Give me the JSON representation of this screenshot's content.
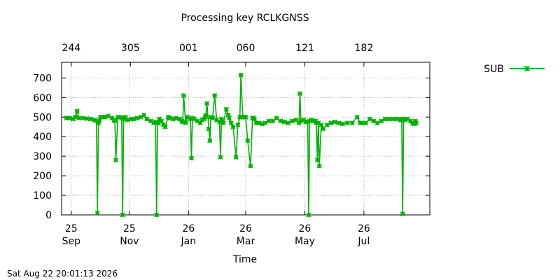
{
  "chart_data": {
    "type": "line",
    "title": "Processing key RCLKGNSS",
    "xlabel": "Time",
    "ylabel": "",
    "ylim": [
      0,
      780
    ],
    "xlim": [
      0,
      380
    ],
    "y_ticks": [
      0,
      100,
      200,
      300,
      400,
      500,
      600,
      700
    ],
    "x_ticks": [
      {
        "x": 10,
        "label": "25",
        "sub": "Sep"
      },
      {
        "x": 70,
        "label": "25",
        "sub": "Nov"
      },
      {
        "x": 131,
        "label": "26",
        "sub": "Jan"
      },
      {
        "x": 190,
        "label": "26",
        "sub": "Mar"
      },
      {
        "x": 251,
        "label": "26",
        "sub": "May"
      },
      {
        "x": 312,
        "label": "26",
        "sub": "Jul"
      }
    ],
    "x2_ticks": [
      {
        "x": 10,
        "label": "244"
      },
      {
        "x": 71,
        "label": "305"
      },
      {
        "x": 131,
        "label": "001"
      },
      {
        "x": 190,
        "label": "060"
      },
      {
        "x": 251,
        "label": "121"
      },
      {
        "x": 312,
        "label": "182"
      }
    ],
    "grid": true,
    "legend_position": "top-right",
    "series": [
      {
        "name": "SUB",
        "color": "#00b000",
        "x": [
          5,
          8,
          12,
          14,
          16,
          18,
          22,
          26,
          30,
          34,
          36,
          37,
          38,
          39,
          40,
          42,
          45,
          48,
          52,
          54,
          55,
          56,
          58,
          60,
          62,
          63,
          64,
          65,
          66,
          68,
          72,
          75,
          78,
          82,
          85,
          88,
          92,
          95,
          97,
          98,
          99,
          100,
          101,
          103,
          105,
          107,
          110,
          112,
          115,
          118,
          122,
          124,
          125,
          126,
          128,
          130,
          133,
          134,
          135,
          137,
          140,
          143,
          145,
          147,
          148,
          149,
          150,
          152,
          153,
          154,
          156,
          158,
          160,
          163,
          164,
          165,
          167,
          170,
          172,
          173,
          175,
          177,
          180,
          182,
          184,
          185,
          187,
          188,
          190,
          192,
          195,
          197,
          198,
          199,
          201,
          204,
          207,
          210,
          214,
          218,
          222,
          226,
          230,
          234,
          238,
          242,
          245,
          246,
          247,
          250,
          252,
          254,
          255,
          256,
          258,
          260,
          262,
          263,
          264,
          265,
          266,
          268,
          270,
          274,
          278,
          282,
          286,
          290,
          295,
          300,
          305,
          308,
          310,
          314,
          318,
          322,
          326,
          330,
          334,
          338,
          342,
          346,
          350,
          351,
          352,
          353,
          354,
          357,
          360,
          362,
          364,
          365,
          366
        ],
        "values": [
          495,
          495,
          490,
          500,
          530,
          495,
          495,
          492,
          490,
          485,
          480,
          10,
          470,
          480,
          500,
          500,
          500,
          505,
          495,
          485,
          480,
          280,
          500,
          500,
          495,
          0,
          495,
          490,
          500,
          485,
          490,
          490,
          495,
          500,
          510,
          490,
          480,
          470,
          475,
          0,
          470,
          470,
          490,
          480,
          460,
          450,
          500,
          495,
          490,
          495,
          490,
          480,
          475,
          610,
          470,
          500,
          490,
          290,
          495,
          490,
          480,
          470,
          485,
          490,
          500,
          510,
          570,
          440,
          380,
          500,
          495,
          610,
          485,
          475,
          295,
          490,
          470,
          540,
          510,
          495,
          470,
          450,
          295,
          460,
          500,
          715,
          500,
          500,
          500,
          380,
          250,
          495,
          495,
          490,
          470,
          470,
          465,
          470,
          480,
          480,
          495,
          480,
          475,
          470,
          480,
          485,
          470,
          620,
          480,
          485,
          475,
          475,
          0,
          480,
          485,
          480,
          480,
          470,
          280,
          470,
          250,
          460,
          440,
          460,
          470,
          475,
          470,
          465,
          470,
          470,
          500,
          470,
          470,
          470,
          490,
          480,
          470,
          480,
          490,
          490,
          490,
          490,
          485,
          490,
          5,
          490,
          485,
          490,
          480,
          470,
          465,
          480,
          470
        ]
      }
    ]
  },
  "footer": {
    "timestamp": "Sat Aug 22 20:01:13 2026"
  }
}
